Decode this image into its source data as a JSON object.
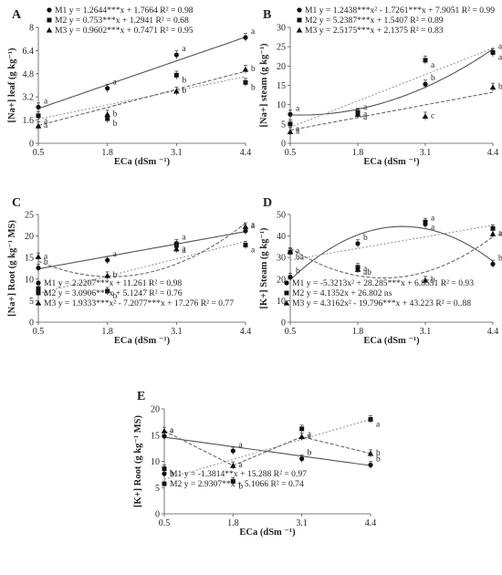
{
  "chart_data": [
    {
      "panel": "A",
      "type": "scatter",
      "x": [
        0.5,
        1.8,
        3.1,
        4.4
      ],
      "xticks": [
        "0.5",
        "1.8",
        "3.1",
        "4.4"
      ],
      "yticks": [
        "0",
        "1.6",
        "3.2",
        "4.8",
        "6.4",
        "8"
      ],
      "ylim": [
        0,
        8
      ],
      "xlabel": "ECa (dSm ⁻¹)",
      "ylabel": "[Na+] leaf (g kg⁻¹)",
      "series": [
        {
          "name": "M1",
          "marker": "circle",
          "line": "solid",
          "values": [
            2.5,
            3.8,
            6.1,
            7.3
          ],
          "labels": [
            "a",
            "a",
            "a",
            "a"
          ],
          "equation": "y = 1.2644***x + 1.7664  R² = 0.98",
          "fit": {
            "type": "linear",
            "coef": [
              1.2644,
              1.7664
            ]
          }
        },
        {
          "name": "M2",
          "marker": "square",
          "line": "dotted",
          "values": [
            1.9,
            1.7,
            4.7,
            4.2
          ],
          "labels": [
            "a",
            "b",
            "b",
            "b"
          ],
          "equation": "y = 0.753***x + 1.2941  R² = 0.68",
          "fit": {
            "type": "linear",
            "coef": [
              0.753,
              1.2941
            ]
          }
        },
        {
          "name": "M3",
          "marker": "triangle",
          "line": "dashed",
          "values": [
            1.2,
            2.0,
            3.6,
            5.1
          ],
          "labels": [
            "a",
            "b",
            "b",
            "b"
          ],
          "equation": "y = 0.9602***x + 0.7471  R² = 0.95",
          "fit": {
            "type": "linear",
            "coef": [
              0.9602,
              0.7471
            ]
          }
        }
      ]
    },
    {
      "panel": "B",
      "type": "scatter",
      "x": [
        0.5,
        1.8,
        3.1,
        4.4
      ],
      "xticks": [
        "0.5",
        "1.8",
        "3.1",
        "4.4"
      ],
      "yticks": [
        "0",
        "5",
        "10",
        "15",
        "20",
        "25",
        "30"
      ],
      "ylim": [
        0,
        30
      ],
      "xlabel": "ECa (dSm ⁻¹)",
      "ylabel": "[Na+] steam (g kg⁻¹)",
      "series": [
        {
          "name": "M1",
          "marker": "circle",
          "line": "solid",
          "values": [
            7.5,
            7.8,
            15.3,
            23.5
          ],
          "labels": [
            "a",
            "a",
            "b",
            "a"
          ],
          "equation": "y = 1.2438***x² - 1.7261***x + 7.9051  R² = 0.99",
          "fit": {
            "type": "quadratic",
            "coef": [
              1.2438,
              -1.7261,
              7.9051
            ]
          }
        },
        {
          "name": "M2",
          "marker": "square",
          "line": "dotted",
          "values": [
            5.0,
            8.0,
            21.5,
            23.5
          ],
          "labels": [
            "a",
            "a",
            "a",
            "a"
          ],
          "equation": "y = 5.2387***x + 1.5407  R² = 0.89",
          "fit": {
            "type": "linear",
            "coef": [
              5.2387,
              1.5407
            ]
          }
        },
        {
          "name": "M3",
          "marker": "triangle",
          "line": "dashed",
          "values": [
            3.0,
            7.5,
            7.0,
            14.5
          ],
          "labels": [
            "a",
            "a",
            "c",
            "b"
          ],
          "equation": "y = 2.5175***x + 2.1375  R² = 0.83",
          "fit": {
            "type": "linear",
            "coef": [
              2.5175,
              2.1375
            ]
          }
        }
      ]
    },
    {
      "panel": "C",
      "type": "scatter",
      "x": [
        0.5,
        1.8,
        3.1,
        4.4
      ],
      "xticks": [
        "0.5",
        "1.8",
        "3.1",
        "4.4"
      ],
      "yticks": [
        "0",
        "5",
        "10",
        "15",
        "20",
        "25"
      ],
      "ylim": [
        0,
        25
      ],
      "xlabel": "ECa (dSm ⁻¹)",
      "ylabel": "[Na+] Root (g kg⁻¹ MS)",
      "series": [
        {
          "name": "M1",
          "marker": "circle",
          "line": "solid",
          "values": [
            12.6,
            14.4,
            18.3,
            21.2
          ],
          "labels": [
            "b",
            "a",
            "a",
            "a"
          ],
          "equation": "y = 2.2207***x + 11.261  R² = 0.98",
          "fit": {
            "type": "linear",
            "coef": [
              2.2207,
              11.261
            ]
          }
        },
        {
          "name": "M2",
          "marker": "square",
          "line": "dotted",
          "values": [
            7.8,
            7.2,
            17.8,
            17.9
          ],
          "labels": [
            "c",
            "b",
            "a",
            "a"
          ],
          "equation": "y = 3.0906***x + 5.1247  R² = 0.76",
          "fit": {
            "type": "linear",
            "coef": [
              3.0906,
              5.1247
            ]
          }
        },
        {
          "name": "M3",
          "marker": "triangle",
          "line": "dashed",
          "values": [
            15.2,
            10.8,
            17.0,
            22.2
          ],
          "labels": [
            "a",
            "b",
            "a",
            "a"
          ],
          "equation": "y = 1.9333***x² - 7.2077***x + 17.276  R² = 0.77",
          "fit": {
            "type": "quadratic",
            "coef": [
              1.9333,
              -7.2077,
              17.276
            ]
          }
        }
      ]
    },
    {
      "panel": "D",
      "type": "scatter",
      "x": [
        0.5,
        1.8,
        3.1,
        4.4
      ],
      "xticks": [
        "0.5",
        "1.8",
        "3.1",
        "4.4"
      ],
      "yticks": [
        "0",
        "10",
        "20",
        "30",
        "40",
        "50"
      ],
      "ylim": [
        0,
        50
      ],
      "xlabel": "ECa (dSm ⁻¹)",
      "ylabel": "[K+] Steam (g kg⁻¹)",
      "series": [
        {
          "name": "M1",
          "marker": "circle",
          "line": "solid",
          "values": [
            21.0,
            36.5,
            45.5,
            27.0
          ],
          "labels": [
            "b",
            "b",
            "a",
            "b"
          ],
          "equation": "y = -5.3213x² + 28.285***x + 6.8551  R² = 0.93",
          "fit": {
            "type": "quadratic",
            "coef": [
              -5.3213,
              28.285,
              6.8551
            ]
          }
        },
        {
          "name": "M2",
          "marker": "square",
          "line": "dotted",
          "values": [
            32.5,
            25.5,
            46.5,
            43.5
          ],
          "labels": [
            "ba",
            "ab",
            "a",
            "a"
          ],
          "equation": "y = 4.1352x + 26.802 ns",
          "fit": {
            "type": "linear",
            "coef": [
              4.1352,
              26.802
            ]
          }
        },
        {
          "name": "M3",
          "marker": "triangle",
          "line": "dashed",
          "values": [
            32.8,
            24.5,
            19.5,
            41.0
          ],
          "labels": [
            "a",
            "a",
            "b",
            "a"
          ],
          "equation": "y = 4.3162x² - 19.796***x + 43.223  R² = 0..88",
          "fit": {
            "type": "quadratic",
            "coef": [
              4.3162,
              -19.796,
              43.223
            ]
          }
        }
      ]
    },
    {
      "panel": "E",
      "type": "scatter",
      "x": [
        0.5,
        1.8,
        3.1,
        4.4
      ],
      "xticks": [
        "0.5",
        "1.8",
        "3.1",
        "4.4"
      ],
      "yticks": [
        "0",
        "5",
        "10",
        "15",
        "20"
      ],
      "ylim": [
        0,
        20
      ],
      "xlabel": "ECa (dSm ⁻¹)",
      "ylabel": "[K+] Root (g kg⁻¹ MS)",
      "series": [
        {
          "name": "M1",
          "marker": "circle",
          "line": "solid",
          "values": [
            14.8,
            12.0,
            10.5,
            9.3
          ],
          "labels": [
            "a",
            "a",
            "b",
            "b"
          ],
          "equation": "y = -1.3814**x + 15.288  R² = 0.97",
          "fit": {
            "type": "linear",
            "coef": [
              -1.3814,
              15.288
            ]
          }
        },
        {
          "name": "M2",
          "marker": "square",
          "line": "dotted",
          "values": [
            8.6,
            6.2,
            16.2,
            18.0
          ],
          "labels": [
            "b",
            "b",
            "a",
            "a"
          ],
          "equation": "y = 2.9307**x + 5.1066  R² = 0.74",
          "fit": {
            "type": "linear",
            "coef": [
              2.9307,
              5.1066
            ]
          }
        },
        {
          "name": "",
          "marker": "triangle",
          "line": "dashed",
          "values": [
            15.8,
            9.2,
            14.7,
            11.5
          ],
          "labels": [
            "a",
            "a",
            "a",
            "b"
          ],
          "equation": "",
          "fit": {
            "type": "points"
          }
        }
      ]
    }
  ]
}
